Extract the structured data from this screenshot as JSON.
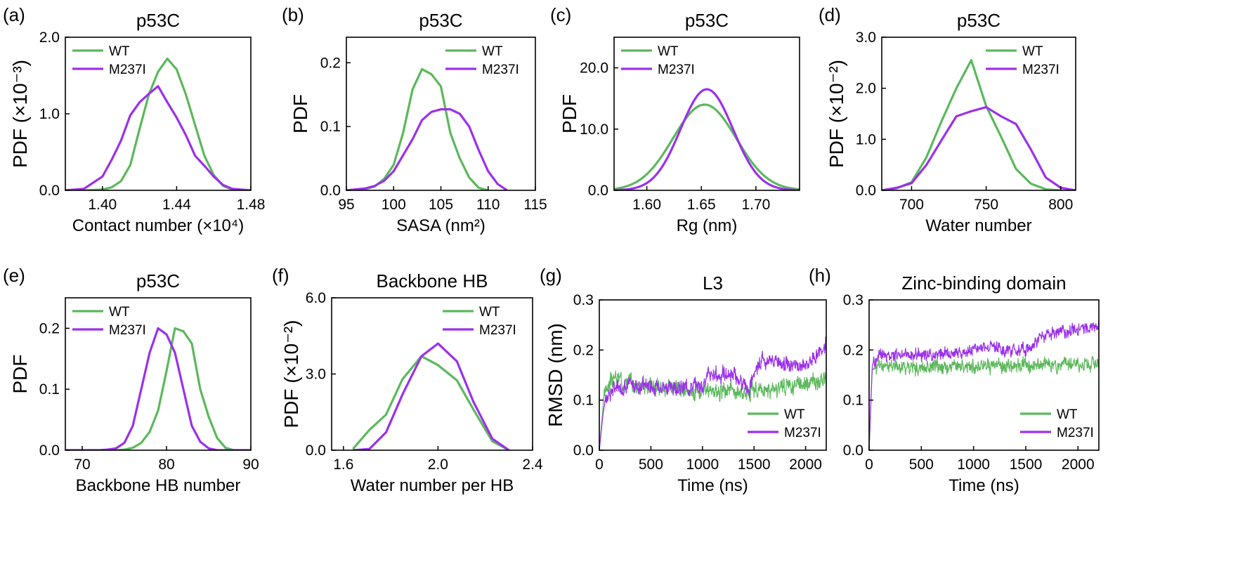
{
  "colors": {
    "WT": "#5cb85c",
    "M237I": "#9b30ea"
  },
  "panels": [
    {
      "label": "(a)",
      "title": "p53C",
      "type": "line",
      "xlabel": "Contact number (×10⁴)",
      "ylabel": "PDF (×10⁻³)",
      "xlim": [
        1.38,
        1.48
      ],
      "ylim": [
        0,
        2.0
      ],
      "xticks": [
        1.4,
        1.44,
        1.48
      ],
      "xtick_labels": [
        "1.40",
        "1.44",
        "1.48"
      ],
      "yticks": [
        0,
        1.0,
        2.0
      ],
      "ytick_labels": [
        "0.0",
        "1.0",
        "2.0"
      ],
      "legend_position": "top-left",
      "series": [
        {
          "name": "WT",
          "x": [
            1.38,
            1.39,
            1.4,
            1.405,
            1.41,
            1.415,
            1.42,
            1.425,
            1.43,
            1.435,
            1.44,
            1.445,
            1.45,
            1.455,
            1.46,
            1.465,
            1.47,
            1.48
          ],
          "y": [
            0,
            0,
            0.01,
            0.04,
            0.12,
            0.33,
            0.8,
            1.25,
            1.55,
            1.72,
            1.58,
            1.25,
            0.85,
            0.45,
            0.2,
            0.06,
            0.01,
            0
          ]
        },
        {
          "name": "M237I",
          "x": [
            1.38,
            1.39,
            1.395,
            1.4,
            1.405,
            1.41,
            1.415,
            1.42,
            1.425,
            1.43,
            1.435,
            1.44,
            1.445,
            1.45,
            1.455,
            1.46,
            1.465,
            1.47,
            1.48
          ],
          "y": [
            0,
            0.02,
            0.1,
            0.18,
            0.4,
            0.65,
            0.98,
            1.15,
            1.26,
            1.36,
            1.15,
            0.95,
            0.72,
            0.45,
            0.32,
            0.18,
            0.07,
            0.02,
            0
          ]
        }
      ]
    },
    {
      "label": "(b)",
      "title": "p53C",
      "type": "line",
      "xlabel": "SASA (nm²)",
      "ylabel": "PDF",
      "xlim": [
        95,
        115
      ],
      "ylim": [
        0,
        0.24
      ],
      "xticks": [
        95,
        100,
        105,
        110,
        115
      ],
      "xtick_labels": [
        "95",
        "100",
        "105",
        "110",
        "115"
      ],
      "yticks": [
        0,
        0.1,
        0.2
      ],
      "ytick_labels": [
        "0.0",
        "0.1",
        "0.2"
      ],
      "legend_position": "top-right",
      "series": [
        {
          "name": "WT",
          "x": [
            95,
            97,
            98,
            99,
            100,
            101,
            102,
            103,
            104,
            105,
            106,
            107,
            108,
            109,
            110
          ],
          "y": [
            0,
            0.002,
            0.006,
            0.018,
            0.04,
            0.09,
            0.158,
            0.19,
            0.182,
            0.163,
            0.09,
            0.05,
            0.02,
            0.004,
            0
          ]
        },
        {
          "name": "M237I",
          "x": [
            95,
            97,
            98,
            99,
            100,
            101,
            102,
            103,
            104,
            105,
            106,
            107,
            108,
            109,
            110,
            111,
            112
          ],
          "y": [
            0,
            0.003,
            0.007,
            0.015,
            0.03,
            0.055,
            0.08,
            0.11,
            0.123,
            0.127,
            0.127,
            0.12,
            0.1,
            0.063,
            0.03,
            0.01,
            0
          ]
        }
      ]
    },
    {
      "label": "(c)",
      "title": "p53C",
      "type": "line",
      "xlabel": "Rg (nm)",
      "ylabel": "PDF",
      "xlim": [
        1.57,
        1.74
      ],
      "ylim": [
        0,
        25
      ],
      "xticks": [
        1.6,
        1.65,
        1.7
      ],
      "xtick_labels": [
        "1.60",
        "1.65",
        "1.70"
      ],
      "yticks": [
        0,
        10,
        20
      ],
      "ytick_labels": [
        "0.0",
        "10.0",
        "20.0"
      ],
      "legend_position": "top-left",
      "series": [
        {
          "name": "WT",
          "gauss": {
            "amp": 14.0,
            "mu": 1.653,
            "sigma": 0.029,
            "xmin": 1.57,
            "xmax": 1.74
          }
        },
        {
          "name": "M237I",
          "gauss": {
            "amp": 16.5,
            "mu": 1.655,
            "sigma": 0.024,
            "xmin": 1.57,
            "xmax": 1.74
          }
        }
      ]
    },
    {
      "label": "(d)",
      "title": "p53C",
      "type": "line",
      "xlabel": "Water number",
      "ylabel": "PDF (×10⁻²)",
      "xlim": [
        680,
        810
      ],
      "ylim": [
        0,
        3.0
      ],
      "xticks": [
        700,
        750,
        800
      ],
      "xtick_labels": [
        "700",
        "750",
        "800"
      ],
      "yticks": [
        0,
        1.0,
        2.0,
        3.0
      ],
      "ytick_labels": [
        "0.0",
        "1.0",
        "2.0",
        "3.0"
      ],
      "legend_position": "top-right",
      "series": [
        {
          "name": "WT",
          "x": [
            680,
            690,
            700,
            710,
            720,
            730,
            740,
            750,
            760,
            770,
            780,
            790,
            800
          ],
          "y": [
            0,
            0.04,
            0.16,
            0.65,
            1.35,
            2.0,
            2.55,
            1.65,
            1.05,
            0.42,
            0.13,
            0.02,
            0
          ]
        },
        {
          "name": "M237I",
          "x": [
            680,
            690,
            700,
            710,
            720,
            730,
            740,
            750,
            760,
            770,
            780,
            790,
            800,
            810
          ],
          "y": [
            0,
            0.05,
            0.14,
            0.5,
            0.98,
            1.45,
            1.55,
            1.63,
            1.45,
            1.3,
            0.8,
            0.25,
            0.05,
            0
          ]
        }
      ]
    },
    {
      "label": "(e)",
      "title": "p53C",
      "type": "line",
      "xlabel": "Backbone HB number",
      "ylabel": "PDF",
      "xlim": [
        68,
        90
      ],
      "ylim": [
        0,
        0.25
      ],
      "xticks": [
        70,
        80,
        90
      ],
      "xtick_labels": [
        "70",
        "80",
        "90"
      ],
      "yticks": [
        0,
        0.1,
        0.2
      ],
      "ytick_labels": [
        "0.0",
        "0.1",
        "0.2"
      ],
      "legend_position": "top-left",
      "series": [
        {
          "name": "WT",
          "x": [
            68,
            74,
            75,
            76,
            77,
            78,
            79,
            80,
            81,
            82,
            83,
            84,
            85,
            86,
            87,
            88,
            90
          ],
          "y": [
            0,
            0,
            0.001,
            0.004,
            0.012,
            0.03,
            0.065,
            0.13,
            0.2,
            0.195,
            0.175,
            0.1,
            0.055,
            0.02,
            0.004,
            0,
            0
          ]
        },
        {
          "name": "M237I",
          "x": [
            68,
            72,
            73,
            74,
            75,
            76,
            77,
            78,
            79,
            80,
            81,
            82,
            83,
            84,
            85,
            86,
            90
          ],
          "y": [
            0,
            0,
            0.001,
            0.003,
            0.012,
            0.04,
            0.1,
            0.16,
            0.2,
            0.19,
            0.16,
            0.1,
            0.04,
            0.014,
            0.003,
            0,
            0
          ]
        }
      ]
    },
    {
      "label": "(f)",
      "title": "Backbone HB",
      "type": "line",
      "xlabel": "Water number per HB",
      "ylabel": "PDF (×10⁻²)",
      "xlim": [
        1.55,
        2.4
      ],
      "ylim": [
        0,
        6.0
      ],
      "xticks": [
        1.6,
        2.0,
        2.4
      ],
      "xtick_labels": [
        "1.6",
        "2.0",
        "2.4"
      ],
      "yticks": [
        0,
        3.0,
        6.0
      ],
      "ytick_labels": [
        "0.0",
        "3.0",
        "6.0"
      ],
      "legend_position": "top-right",
      "series": [
        {
          "name": "WT",
          "x": [
            1.64,
            1.71,
            1.78,
            1.85,
            1.93,
            2.0,
            2.08,
            2.15,
            2.23,
            2.3
          ],
          "y": [
            0.05,
            0.8,
            1.4,
            2.8,
            3.7,
            3.35,
            2.75,
            1.6,
            0.35,
            0
          ]
        },
        {
          "name": "M237I",
          "x": [
            1.64,
            1.71,
            1.78,
            1.85,
            1.93,
            2.0,
            2.08,
            2.15,
            2.23,
            2.3
          ],
          "y": [
            0,
            0.05,
            0.7,
            2.2,
            3.7,
            4.2,
            3.5,
            1.9,
            0.45,
            0
          ]
        }
      ]
    },
    {
      "label": "(g)",
      "title": "L3",
      "type": "timeseries",
      "xlabel": "Time (ns)",
      "ylabel": "RMSD (nm)",
      "xlim": [
        0,
        2200
      ],
      "ylim": [
        0,
        0.3
      ],
      "xticks": [
        0,
        500,
        1000,
        1500,
        2000
      ],
      "xtick_labels": [
        "0",
        "500",
        "1000",
        "1500",
        "2000"
      ],
      "yticks": [
        0,
        0.1,
        0.2,
        0.3
      ],
      "ytick_labels": [
        "0.0",
        "0.1",
        "0.2",
        "0.3"
      ],
      "legend_position": "bottom-right",
      "series": [
        {
          "name": "WT",
          "trend_x": [
            0,
            50,
            150,
            400,
            800,
            1100,
            1300,
            1600,
            1900,
            2200
          ],
          "trend_y": [
            0.0,
            0.12,
            0.145,
            0.13,
            0.12,
            0.118,
            0.12,
            0.118,
            0.13,
            0.14
          ],
          "noise": 0.02,
          "seed": 3
        },
        {
          "name": "M237I",
          "trend_x": [
            0,
            50,
            150,
            400,
            800,
            1000,
            1050,
            1300,
            1450,
            1550,
            1800,
            2000,
            2150,
            2200
          ],
          "trend_y": [
            0.0,
            0.1,
            0.125,
            0.13,
            0.125,
            0.13,
            0.15,
            0.15,
            0.12,
            0.18,
            0.175,
            0.17,
            0.2,
            0.22
          ],
          "noise": 0.018,
          "seed": 7
        }
      ]
    },
    {
      "label": "(h)",
      "title": "Zinc-binding domain",
      "type": "timeseries",
      "xlabel": "Time (ns)",
      "ylabel": "",
      "xlim": [
        0,
        2200
      ],
      "ylim": [
        0,
        0.3
      ],
      "xticks": [
        0,
        500,
        1000,
        1500,
        2000
      ],
      "xtick_labels": [
        "0",
        "500",
        "1000",
        "1500",
        "2000"
      ],
      "yticks": [
        0,
        0.1,
        0.2,
        0.3
      ],
      "ytick_labels": [
        "0.0",
        "0.1",
        "0.2",
        "0.3"
      ],
      "legend_position": "bottom-right",
      "series": [
        {
          "name": "WT",
          "trend_x": [
            0,
            30,
            100,
            500,
            1000,
            1500,
            2000,
            2200
          ],
          "trend_y": [
            0.0,
            0.16,
            0.17,
            0.165,
            0.168,
            0.17,
            0.172,
            0.175
          ],
          "noise": 0.016,
          "seed": 11
        },
        {
          "name": "M237I",
          "trend_x": [
            0,
            30,
            100,
            500,
            900,
            1100,
            1300,
            1500,
            1700,
            2000,
            2200
          ],
          "trend_y": [
            0.0,
            0.17,
            0.19,
            0.19,
            0.195,
            0.21,
            0.2,
            0.2,
            0.235,
            0.24,
            0.25
          ],
          "noise": 0.015,
          "seed": 19
        }
      ]
    }
  ]
}
